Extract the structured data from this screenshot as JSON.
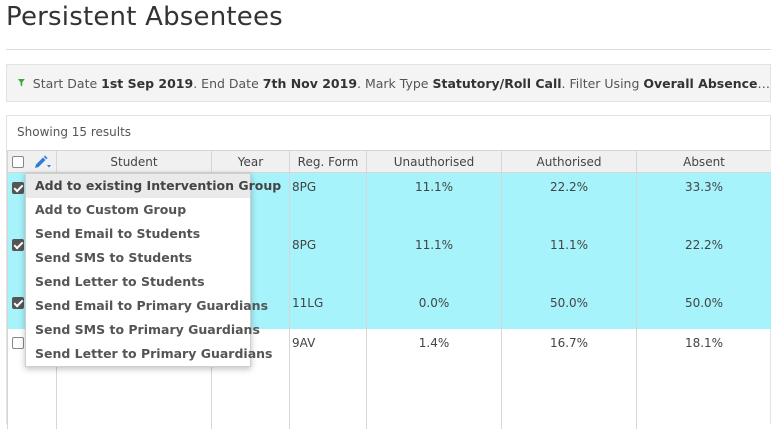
{
  "page": {
    "title": "Persistent Absentees"
  },
  "filter": {
    "start_label": "Start Date",
    "start_value": "1st Sep 2019",
    "end_label": ". End Date",
    "end_value": "7th Nov 2019",
    "mark_label": ". Mark Type",
    "mark_value": "Statutory/Roll Call",
    "using_label": ". Filter Using",
    "using_value": "Overall Absence",
    "ellipsis": "…"
  },
  "results": {
    "count_text": "Showing 15 results"
  },
  "table": {
    "columns": {
      "student": "Student",
      "year": "Year",
      "reg_form": "Reg. Form",
      "unauthorised": "Unauthorised",
      "authorised": "Authorised",
      "absent": "Absent"
    },
    "rows": [
      {
        "checked": true,
        "student": "",
        "year": "",
        "reg_form": "8PG",
        "unauthorised": "11.1%",
        "authorised": "22.2%",
        "absent": "33.3%"
      },
      {
        "checked": true,
        "student": "",
        "year": "",
        "reg_form": "8PG",
        "unauthorised": "11.1%",
        "authorised": "11.1%",
        "absent": "22.2%"
      },
      {
        "checked": true,
        "student": "",
        "year": "1",
        "reg_form": "11LG",
        "unauthorised": "0.0%",
        "authorised": "50.0%",
        "absent": "50.0%"
      },
      {
        "checked": false,
        "student": "",
        "year": "",
        "reg_form": "9AV",
        "unauthorised": "1.4%",
        "authorised": "16.7%",
        "absent": "18.1%"
      }
    ]
  },
  "action_menu": {
    "items": [
      "Add to existing Intervention Group",
      "Add to Custom Group",
      "Send Email to Students",
      "Send SMS to Students",
      "Send Letter to Students",
      "Send Email to Primary Guardians",
      "Send SMS to Primary Guardians",
      "Send Letter to Primary Guardians"
    ],
    "highlighted_index": 0
  },
  "colors": {
    "selected_row": "#a6f3fb",
    "filter_icon": "#3aa832",
    "tools_icon": "#2f7bd8"
  },
  "icons": {
    "filter": "funnel-icon",
    "tools": "pencil-icon"
  }
}
